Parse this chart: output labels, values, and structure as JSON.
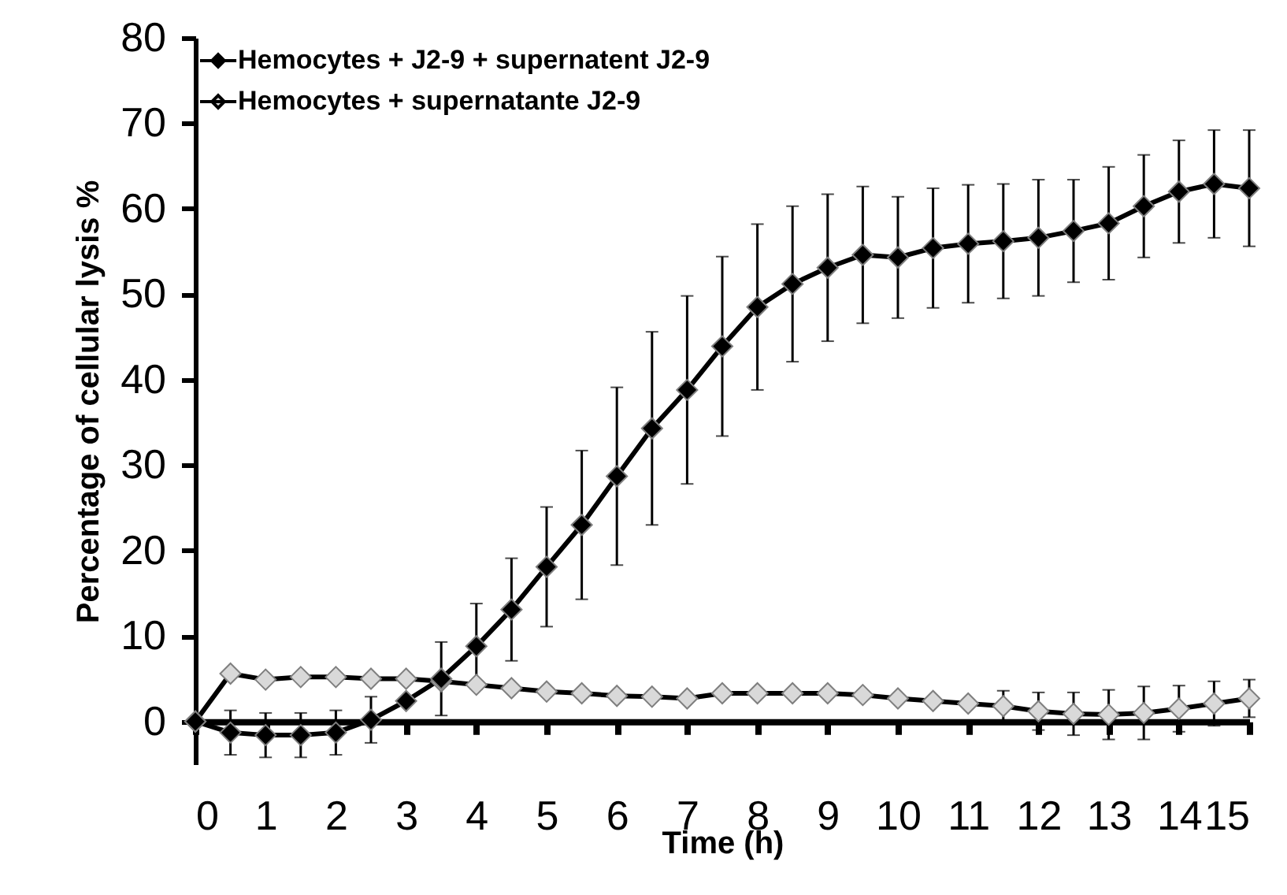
{
  "chart_data": {
    "type": "line",
    "xlabel": "Time (h)",
    "ylabel": "Percentage of cellular lysis %",
    "x": [
      0,
      0.5,
      1,
      1.5,
      2,
      2.5,
      3,
      3.5,
      4,
      4.5,
      5,
      5.5,
      6,
      6.5,
      7,
      7.5,
      8,
      8.5,
      9,
      9.5,
      10,
      10.5,
      11,
      11.5,
      12,
      12.5,
      13,
      13.5,
      14,
      14.5,
      15
    ],
    "series": [
      {
        "name": "Hemocytes + J2-9 + supernatent J2-9",
        "color": "#000000",
        "values": [
          0,
          -1.3,
          -1.6,
          -1.6,
          -1.3,
          0.2,
          2.4,
          5,
          8.8,
          13.1,
          18.1,
          23,
          28.7,
          34.3,
          38.8,
          43.9,
          48.5,
          51.2,
          53.1,
          54.6,
          54.3,
          55.4,
          55.9,
          56.2,
          56.6,
          57.4,
          58.3,
          60.3,
          62,
          62.9,
          62.4
        ],
        "errors": [
          null,
          2.6,
          2.6,
          2.6,
          2.6,
          2.7,
          null,
          4.3,
          5,
          6,
          7,
          8.7,
          10.4,
          11.3,
          11,
          10.5,
          9.7,
          9.1,
          8.6,
          8,
          7.1,
          7,
          6.9,
          6.7,
          6.8,
          6,
          6.6,
          6,
          6,
          6.3,
          6.8
        ]
      },
      {
        "name": "Hemocytes + supernatante J2-9",
        "color": "#d9d9d9",
        "values": [
          0,
          5.6,
          4.9,
          5.2,
          5.2,
          5,
          5,
          4.7,
          4.3,
          3.9,
          3.5,
          3.3,
          3,
          2.9,
          2.7,
          3.3,
          3.3,
          3.3,
          3.3,
          3.1,
          2.7,
          2.4,
          2.1,
          1.8,
          1.2,
          0.9,
          0.8,
          1,
          1.5,
          2.1,
          2.7
        ],
        "errors": [
          null,
          null,
          null,
          null,
          null,
          null,
          null,
          null,
          null,
          null,
          null,
          null,
          null,
          null,
          null,
          null,
          null,
          null,
          null,
          null,
          null,
          null,
          null,
          1.8,
          2.2,
          2.5,
          2.9,
          3.1,
          2.7,
          2.6,
          2.2
        ]
      }
    ],
    "xlim": [
      0,
      15
    ],
    "xticks": [
      0,
      1,
      2,
      3,
      4,
      5,
      6,
      7,
      8,
      9,
      10,
      11,
      12,
      13,
      14,
      15
    ],
    "ylim": [
      -5,
      80
    ],
    "yticks": [
      0,
      10,
      20,
      30,
      40,
      50,
      60,
      70,
      80
    ],
    "grid": false,
    "legend": "top left",
    "marker": "diamond",
    "line_style": "solid"
  }
}
